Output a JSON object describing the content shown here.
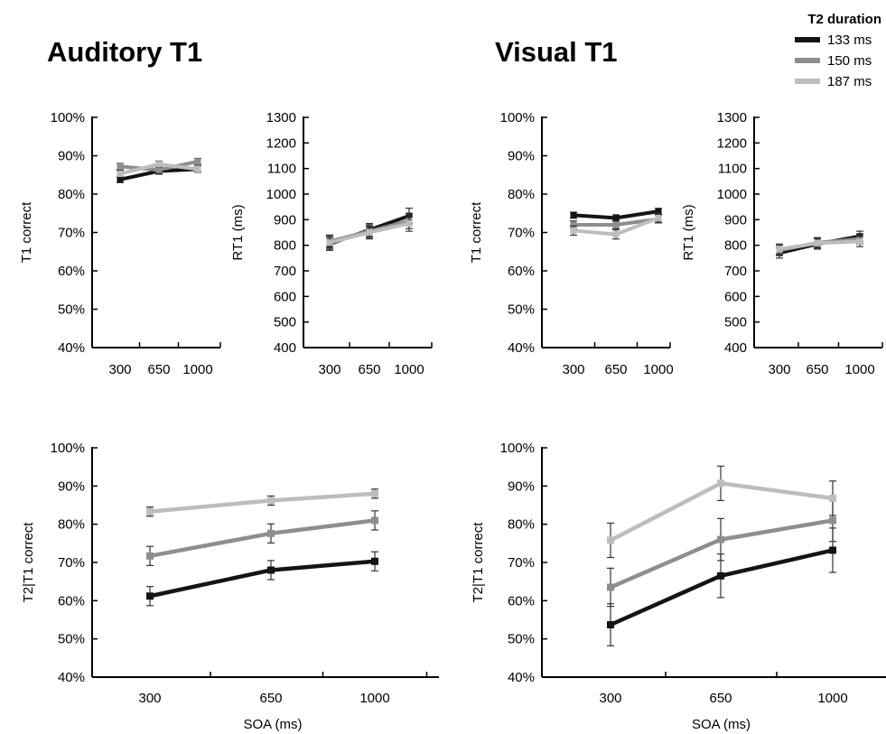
{
  "titles": {
    "auditory": "Auditory T1",
    "visual": "Visual T1"
  },
  "legend": {
    "title": "T2 duration",
    "entries": [
      {
        "label": "133 ms",
        "color": "#141414"
      },
      {
        "label": "150 ms",
        "color": "#8e8e8e"
      },
      {
        "label": "187 ms",
        "color": "#bdbdbd"
      }
    ]
  },
  "chart_data": [
    {
      "id": "aud-t1",
      "type": "line",
      "panel_title": "Auditory T1",
      "ylabel": "T1 correct",
      "xlabel": "",
      "x": [
        300,
        650,
        1000
      ],
      "x_ticks": [
        "300",
        "650",
        "1000"
      ],
      "ylim": [
        40,
        100
      ],
      "y_ticks": [
        "40%",
        "50%",
        "60%",
        "70%",
        "80%",
        "90%",
        "100%"
      ],
      "y_step": 10,
      "series": [
        {
          "name": "133 ms",
          "values": [
            83.8,
            86.0,
            86.5
          ],
          "err": [
            0.8,
            0.8,
            0.8
          ]
        },
        {
          "name": "150 ms",
          "values": [
            87.2,
            86.3,
            88.5
          ],
          "err": [
            0.8,
            0.8,
            0.8
          ]
        },
        {
          "name": "187 ms",
          "values": [
            85.3,
            87.8,
            86.5
          ],
          "err": [
            0.8,
            0.8,
            0.8
          ]
        }
      ]
    },
    {
      "id": "aud-rt1",
      "type": "line",
      "ylabel": "RT1 (ms)",
      "xlabel": "",
      "x": [
        300,
        650,
        1000
      ],
      "x_ticks": [
        "300",
        "650",
        "1000"
      ],
      "ylim": [
        400,
        1300
      ],
      "y_ticks": [
        "400",
        "500",
        "600",
        "700",
        "800",
        "900",
        "1000",
        "1100",
        "1200",
        "1300"
      ],
      "y_step": 100,
      "series": [
        {
          "name": "133 ms",
          "values": [
            805,
            860,
            915
          ],
          "err": [
            25,
            25,
            30
          ]
        },
        {
          "name": "150 ms",
          "values": [
            815,
            855,
            895
          ],
          "err": [
            25,
            25,
            30
          ]
        },
        {
          "name": "187 ms",
          "values": [
            810,
            850,
            885
          ],
          "err": [
            25,
            25,
            30
          ]
        }
      ]
    },
    {
      "id": "vis-t1",
      "type": "line",
      "panel_title": "Visual T1",
      "ylabel": "T1 correct",
      "xlabel": "",
      "x": [
        300,
        650,
        1000
      ],
      "x_ticks": [
        "300",
        "650",
        "1000"
      ],
      "ylim": [
        40,
        100
      ],
      "y_ticks": [
        "40%",
        "50%",
        "60%",
        "70%",
        "80%",
        "90%",
        "100%"
      ],
      "y_step": 10,
      "series": [
        {
          "name": "133 ms",
          "values": [
            74.5,
            73.8,
            75.5
          ],
          "err": [
            0.8,
            0.8,
            0.8
          ]
        },
        {
          "name": "150 ms",
          "values": [
            72.0,
            72.0,
            73.5
          ],
          "err": [
            1.0,
            1.0,
            1.0
          ]
        },
        {
          "name": "187 ms",
          "values": [
            70.5,
            69.5,
            73.8
          ],
          "err": [
            1.2,
            1.2,
            1.2
          ]
        }
      ]
    },
    {
      "id": "vis-rt1",
      "type": "line",
      "ylabel": "RT1 (ms)",
      "xlabel": "",
      "x": [
        300,
        650,
        1000
      ],
      "x_ticks": [
        "300",
        "650",
        "1000"
      ],
      "ylim": [
        400,
        1300
      ],
      "y_ticks": [
        "400",
        "500",
        "600",
        "700",
        "800",
        "900",
        "1000",
        "1100",
        "1200",
        "1300"
      ],
      "y_step": 100,
      "series": [
        {
          "name": "133 ms",
          "values": [
            770,
            805,
            835
          ],
          "err": [
            20,
            20,
            20
          ]
        },
        {
          "name": "150 ms",
          "values": [
            780,
            810,
            825
          ],
          "err": [
            20,
            20,
            20
          ]
        },
        {
          "name": "187 ms",
          "values": [
            785,
            808,
            815
          ],
          "err": [
            20,
            20,
            20
          ]
        }
      ]
    },
    {
      "id": "aud-t2",
      "type": "line",
      "ylabel": "T2|T1 correct",
      "xlabel": "SOA (ms)",
      "x": [
        300,
        650,
        1000
      ],
      "x_ticks": [
        "300",
        "650",
        "1000"
      ],
      "ylim": [
        40,
        100
      ],
      "y_ticks": [
        "40%",
        "50%",
        "60%",
        "70%",
        "80%",
        "90%",
        "100%"
      ],
      "y_step": 10,
      "series": [
        {
          "name": "133 ms",
          "values": [
            61.2,
            68.0,
            70.3
          ],
          "err": [
            2.5,
            2.5,
            2.5
          ]
        },
        {
          "name": "150 ms",
          "values": [
            71.7,
            77.6,
            81.0
          ],
          "err": [
            2.5,
            2.5,
            2.5
          ]
        },
        {
          "name": "187 ms",
          "values": [
            83.3,
            86.2,
            88.0
          ],
          "err": [
            1.2,
            1.2,
            1.2
          ]
        }
      ]
    },
    {
      "id": "vis-t2",
      "type": "line",
      "ylabel": "T2|T1 correct",
      "xlabel": "SOA (ms)",
      "x": [
        300,
        650,
        1000
      ],
      "x_ticks": [
        "300",
        "650",
        "1000"
      ],
      "ylim": [
        40,
        100
      ],
      "y_ticks": [
        "40%",
        "50%",
        "60%",
        "70%",
        "80%",
        "90%",
        "100%"
      ],
      "y_step": 10,
      "series": [
        {
          "name": "133 ms",
          "values": [
            53.7,
            66.5,
            73.2
          ],
          "err": [
            5.5,
            5.7,
            5.8
          ]
        },
        {
          "name": "150 ms",
          "values": [
            63.5,
            76.0,
            81.0
          ],
          "err": [
            5.0,
            5.5,
            5.5
          ]
        },
        {
          "name": "187 ms",
          "values": [
            75.8,
            90.7,
            86.8
          ],
          "err": [
            4.5,
            4.5,
            4.5
          ]
        }
      ]
    }
  ]
}
